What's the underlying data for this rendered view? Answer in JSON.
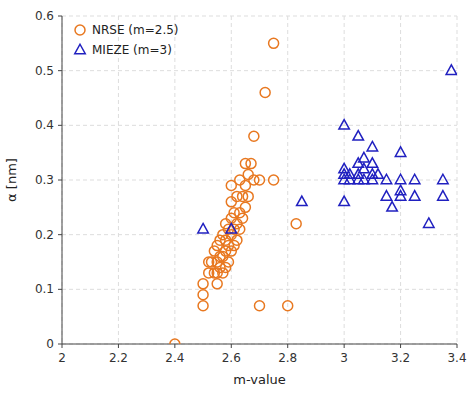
{
  "chart_data": {
    "type": "scatter",
    "xlabel": "m-value",
    "ylabel": "α [nm]",
    "xlim": [
      2.0,
      3.4
    ],
    "ylim": [
      0.0,
      0.6
    ],
    "xticks": [
      2,
      2.2,
      2.4,
      2.6,
      2.8,
      3,
      3.2,
      3.4
    ],
    "yticks": [
      0,
      0.1,
      0.2,
      0.3,
      0.4,
      0.5,
      0.6
    ],
    "grid": true,
    "legend": "upper left",
    "series": [
      {
        "name": "NRSE (m=2.5)",
        "color": "#E87820",
        "marker": "circle",
        "x": [
          2.4,
          2.5,
          2.5,
          2.5,
          2.52,
          2.52,
          2.53,
          2.54,
          2.54,
          2.55,
          2.55,
          2.55,
          2.55,
          2.56,
          2.56,
          2.56,
          2.57,
          2.57,
          2.57,
          2.58,
          2.58,
          2.58,
          2.58,
          2.59,
          2.59,
          2.59,
          2.6,
          2.6,
          2.6,
          2.6,
          2.6,
          2.61,
          2.61,
          2.61,
          2.62,
          2.62,
          2.62,
          2.63,
          2.63,
          2.63,
          2.64,
          2.64,
          2.65,
          2.65,
          2.65,
          2.66,
          2.66,
          2.67,
          2.68,
          2.68,
          2.7,
          2.7,
          2.72,
          2.75,
          2.75,
          2.8,
          2.83
        ],
        "values": [
          0.0,
          0.07,
          0.09,
          0.11,
          0.13,
          0.15,
          0.15,
          0.13,
          0.17,
          0.11,
          0.13,
          0.15,
          0.18,
          0.14,
          0.16,
          0.19,
          0.13,
          0.16,
          0.2,
          0.14,
          0.17,
          0.19,
          0.22,
          0.15,
          0.18,
          0.21,
          0.17,
          0.2,
          0.23,
          0.26,
          0.29,
          0.18,
          0.21,
          0.24,
          0.19,
          0.22,
          0.27,
          0.21,
          0.24,
          0.3,
          0.23,
          0.27,
          0.25,
          0.29,
          0.33,
          0.27,
          0.31,
          0.33,
          0.3,
          0.38,
          0.07,
          0.3,
          0.46,
          0.55,
          0.3,
          0.07,
          0.22
        ]
      },
      {
        "name": "MIEZE (m=3)",
        "color": "#2020C0",
        "marker": "triangle",
        "x": [
          2.5,
          2.6,
          2.85,
          3.0,
          3.0,
          3.0,
          3.0,
          3.0,
          3.02,
          3.02,
          3.05,
          3.05,
          3.05,
          3.05,
          3.07,
          3.07,
          3.07,
          3.1,
          3.1,
          3.1,
          3.1,
          3.12,
          3.15,
          3.15,
          3.17,
          3.2,
          3.2,
          3.2,
          3.2,
          3.25,
          3.25,
          3.3,
          3.35,
          3.35,
          3.38
        ],
        "values": [
          0.21,
          0.21,
          0.26,
          0.26,
          0.3,
          0.31,
          0.32,
          0.4,
          0.3,
          0.31,
          0.3,
          0.31,
          0.33,
          0.38,
          0.3,
          0.32,
          0.34,
          0.3,
          0.31,
          0.33,
          0.36,
          0.31,
          0.27,
          0.3,
          0.25,
          0.27,
          0.28,
          0.3,
          0.35,
          0.27,
          0.3,
          0.22,
          0.27,
          0.3,
          0.5
        ]
      }
    ]
  }
}
